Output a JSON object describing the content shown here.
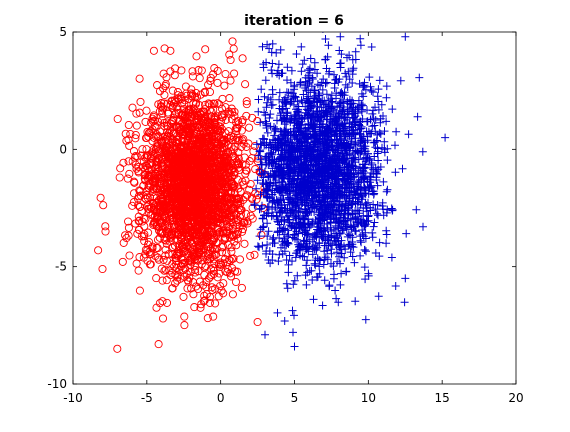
{
  "chart_data": {
    "type": "scatter",
    "title": "iteration = 6",
    "xlabel": "",
    "ylabel": "",
    "xlim": [
      -10,
      20
    ],
    "ylim": [
      -10,
      5
    ],
    "xticks": [
      "-10",
      "-5",
      "0",
      "5",
      "10",
      "15",
      "20"
    ],
    "yticks": [
      "-10",
      "-5",
      "0",
      "5"
    ],
    "grid": false,
    "legend": "none",
    "series": [
      {
        "marker": "circle",
        "color": "#ff0000",
        "cluster_center": [
          -1.8,
          -1.5
        ],
        "cluster_spread": [
          1.8,
          1.9
        ],
        "x_boundary_max": 3.0,
        "points_approx": 2500,
        "outliers": [
          [
            -7.0,
            -8.5
          ],
          [
            -4.2,
            -8.3
          ],
          [
            0.8,
            4.6
          ],
          [
            -3.8,
            4.3
          ],
          [
            -7.8,
            -3.5
          ],
          [
            -8.0,
            -5.1
          ]
        ]
      },
      {
        "marker": "plus",
        "color": "#0000cc",
        "cluster_center": [
          6.5,
          -0.8
        ],
        "cluster_spread": [
          2.2,
          2.0
        ],
        "x_boundary_min": 2.5,
        "points_approx": 2500,
        "outliers": [
          [
            15.2,
            0.5
          ],
          [
            13.7,
            -3.3
          ],
          [
            12.5,
            4.8
          ],
          [
            5.0,
            -8.4
          ],
          [
            4.9,
            -7.8
          ],
          [
            3.0,
            -7.9
          ],
          [
            8.1,
            4.8
          ],
          [
            7.1,
            4.7
          ]
        ]
      }
    ]
  }
}
